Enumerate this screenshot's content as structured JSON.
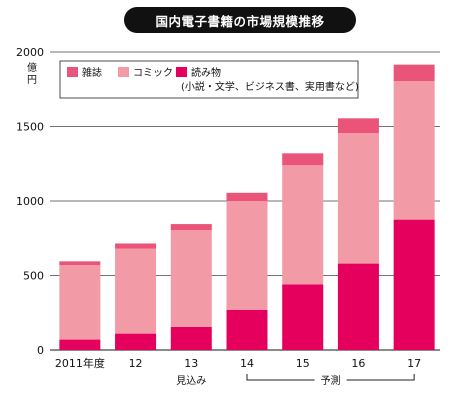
{
  "chart_data": {
    "type": "bar",
    "stacked": true,
    "title": "国内電子書籍の市場規模推移",
    "ylabel": "億円",
    "ylim": [
      0,
      2000
    ],
    "yticks": [
      0,
      500,
      1000,
      1500,
      2000
    ],
    "categories": [
      "2011年度",
      "12",
      "13",
      "14",
      "15",
      "16",
      "17"
    ],
    "series": [
      {
        "name": "読み物",
        "sub": "(小説・文学、ビジネス書、実用書など)",
        "color": "#e5005e",
        "values": [
          70,
          110,
          155,
          270,
          440,
          580,
          875
        ]
      },
      {
        "name": "コミック",
        "color": "#f29aa6",
        "values": [
          500,
          570,
          650,
          730,
          800,
          875,
          930
        ]
      },
      {
        "name": "雑誌",
        "color": "#ea5478",
        "values": [
          25,
          35,
          40,
          55,
          80,
          100,
          110
        ]
      }
    ],
    "legend": "top-left",
    "grid": true,
    "annotations": {
      "estimate": {
        "label": "見込み",
        "category": "13"
      },
      "forecast": {
        "label": "予測",
        "from": "14",
        "to": "17"
      }
    }
  }
}
